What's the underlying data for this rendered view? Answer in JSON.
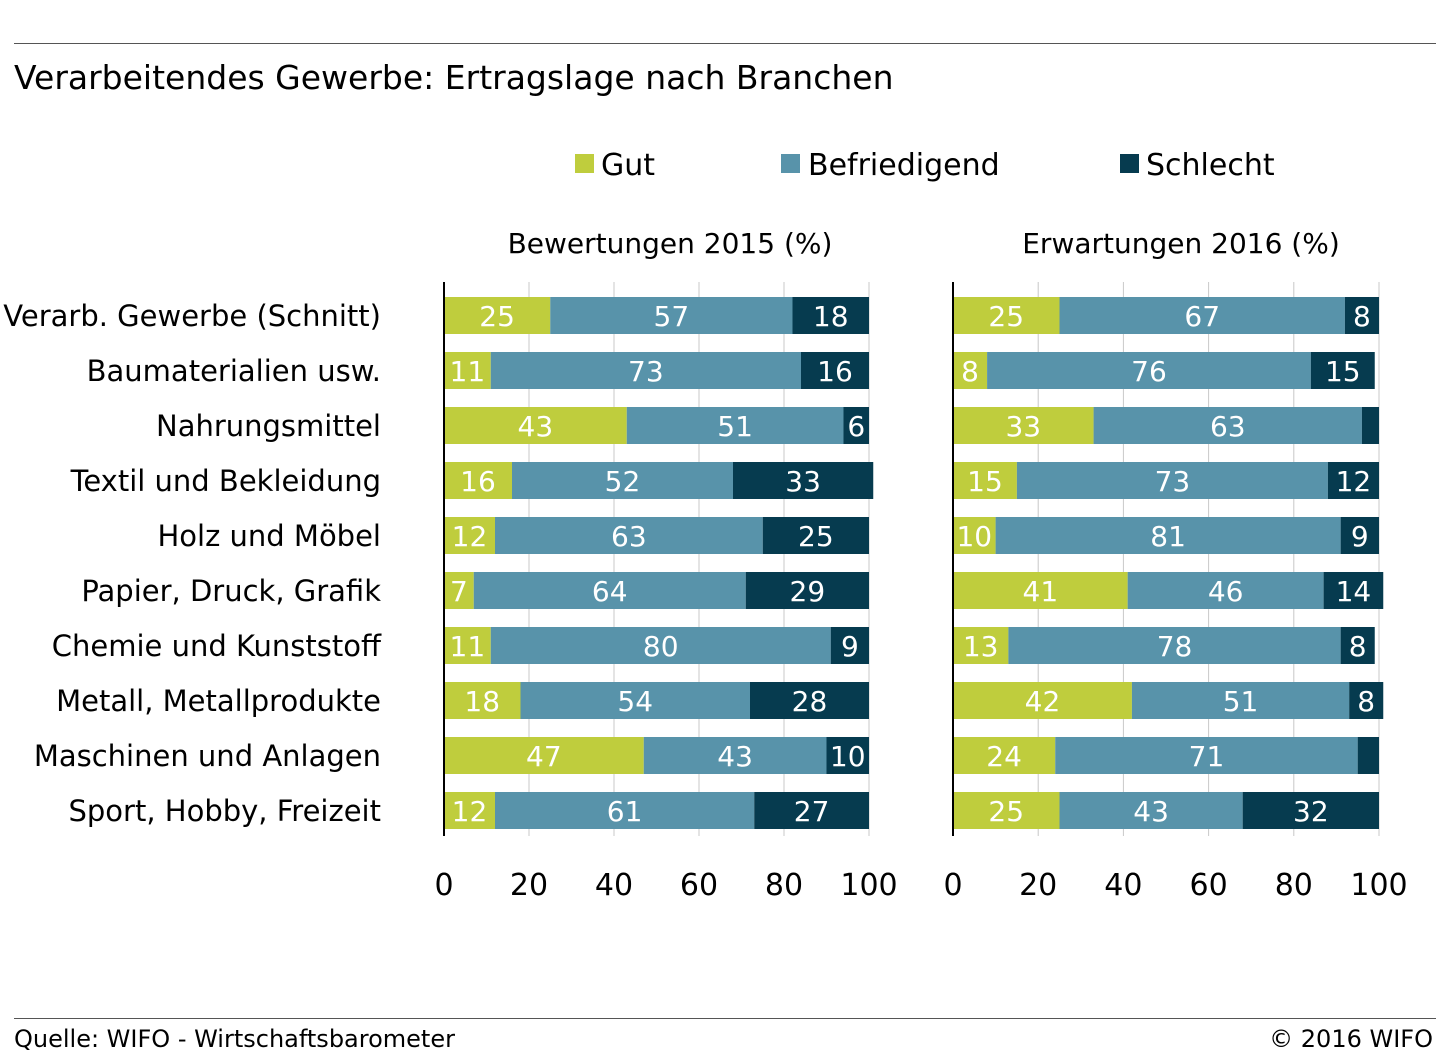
{
  "title": "Verarbeitendes Gewerbe: Ertragslage nach Branchen",
  "source": "Quelle: WIFO - Wirtschaftsbarometer",
  "copyright": "© 2016 WIFO",
  "colors": {
    "gut": "#bfcd3d",
    "befriedigend": "#5893aa",
    "schlecht": "#063b4f"
  },
  "chart_data": {
    "type": "bar",
    "orientation": "horizontal",
    "stacked": true,
    "legend": [
      "Gut",
      "Befriedigend",
      "Schlecht"
    ],
    "legend_position": "top",
    "categories": [
      "Verarb. Gewerbe (Schnitt)",
      "Baumaterialien usw.",
      "Nahrungsmittel",
      "Textil und Bekleidung",
      "Holz und Möbel",
      "Papier, Druck, Grafik",
      "Chemie und Kunststoff",
      "Metall, Metallprodukte",
      "Maschinen und Anlagen",
      "Sport, Hobby, Freizeit"
    ],
    "xlim": [
      0,
      100
    ],
    "xticks": [
      0,
      20,
      40,
      60,
      80,
      100
    ],
    "grid": true,
    "panels": [
      {
        "title": "Bewertungen 2015 (%)",
        "series": [
          {
            "name": "Gut",
            "values": [
              25,
              11,
              43,
              16,
              12,
              7,
              11,
              18,
              47,
              12
            ]
          },
          {
            "name": "Befriedigend",
            "values": [
              57,
              73,
              51,
              52,
              63,
              64,
              80,
              54,
              43,
              61
            ]
          },
          {
            "name": "Schlecht",
            "values": [
              18,
              16,
              6,
              33,
              25,
              29,
              9,
              28,
              10,
              27
            ]
          }
        ]
      },
      {
        "title": "Erwartungen 2016 (%)",
        "series": [
          {
            "name": "Gut",
            "values": [
              25,
              8,
              33,
              15,
              10,
              41,
              13,
              42,
              24,
              25
            ]
          },
          {
            "name": "Befriedigend",
            "values": [
              67,
              76,
              63,
              73,
              81,
              46,
              78,
              51,
              71,
              43
            ]
          },
          {
            "name": "Schlecht",
            "values": [
              8,
              15,
              4,
              12,
              9,
              14,
              8,
              8,
              5,
              32
            ]
          }
        ],
        "labels": [
          [
            "25",
            "67",
            "8"
          ],
          [
            "8",
            "76",
            "15"
          ],
          [
            "33",
            "63",
            ""
          ],
          [
            "15",
            "73",
            "12"
          ],
          [
            "10",
            "81",
            "9"
          ],
          [
            "41",
            "46",
            "14"
          ],
          [
            "13",
            "78",
            "8"
          ],
          [
            "42",
            "51",
            "8"
          ],
          [
            "24",
            "71",
            ""
          ],
          [
            "25",
            "43",
            "32"
          ]
        ]
      }
    ]
  }
}
